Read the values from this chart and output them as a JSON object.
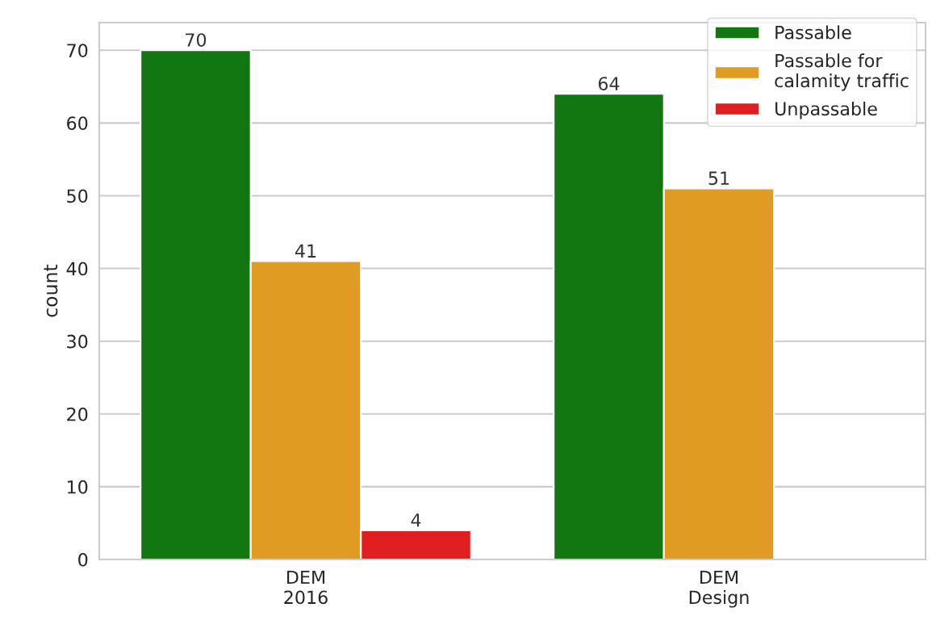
{
  "chart_data": {
    "type": "bar",
    "ylabel": "count",
    "categories": [
      "DEM\n2016",
      "DEM\nDesign"
    ],
    "series": [
      {
        "name": "Passable",
        "color": "#117711",
        "values": [
          70,
          64
        ]
      },
      {
        "name": "Passable for\ncalamity traffic",
        "color": "#e09c22",
        "values": [
          41,
          51
        ]
      },
      {
        "name": "Unpassable",
        "color": "#e02020",
        "values": [
          4,
          null
        ]
      }
    ],
    "ylim": [
      0,
      73.8
    ],
    "yticks": [
      0,
      10,
      20,
      30,
      40,
      50,
      60,
      70
    ],
    "grid": "y",
    "legend": "top right",
    "data_labels": true
  }
}
